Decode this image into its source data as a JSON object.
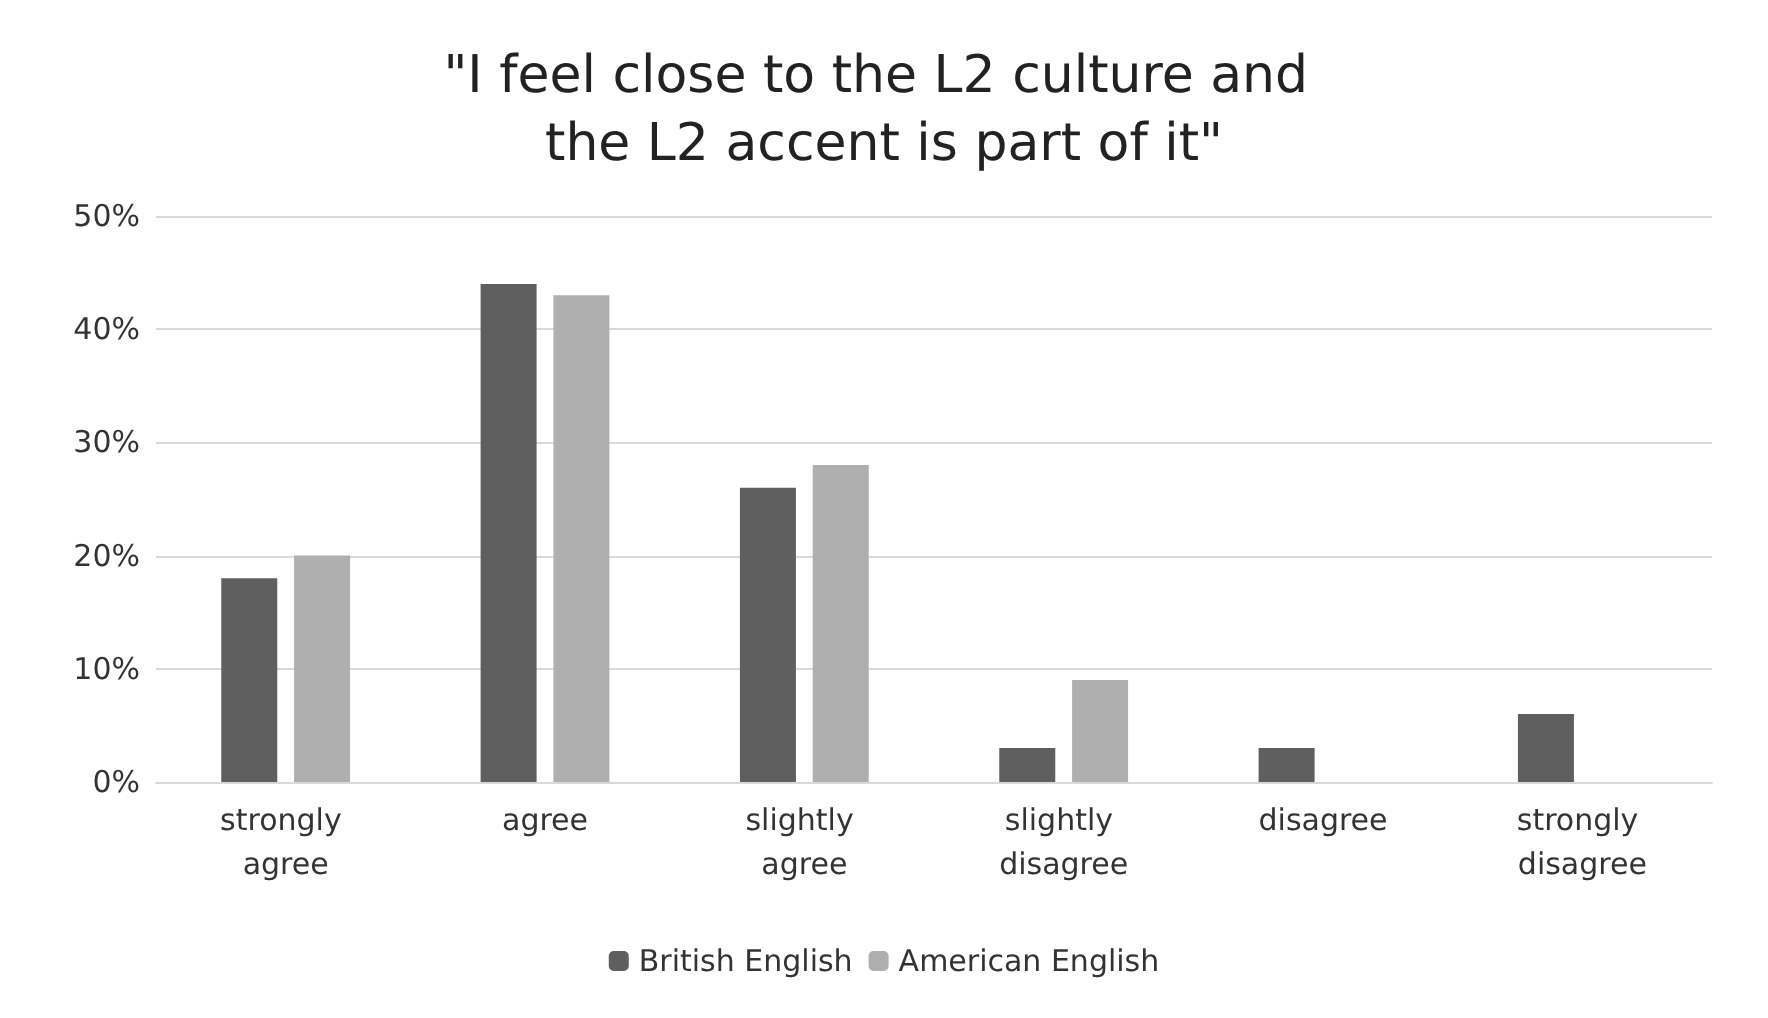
{
  "chart_data": {
    "type": "bar",
    "title": "\"I feel close to the L2 culture and the L2 accent is part of it\"",
    "categories": [
      "strongly agree",
      "agree",
      "slightly agree",
      "slightly disagree",
      "disagree",
      "strongly disagree"
    ],
    "series": [
      {
        "name": "British English",
        "color": "#5f5f5f",
        "values": [
          18,
          44,
          26,
          3,
          3,
          6
        ]
      },
      {
        "name": "American English",
        "color": "#afafaf",
        "values": [
          20,
          43,
          28,
          9,
          0,
          0
        ]
      }
    ],
    "ylim": [
      0,
      50
    ],
    "yticks": [
      {
        "value": 0,
        "label": "0%"
      },
      {
        "value": 10,
        "label": "10%"
      },
      {
        "value": 20,
        "label": "20%"
      },
      {
        "value": 30,
        "label": "30%"
      },
      {
        "value": 40,
        "label": "40%"
      },
      {
        "value": 50,
        "label": "50%"
      }
    ],
    "grid": "y",
    "legend": "bottom"
  }
}
